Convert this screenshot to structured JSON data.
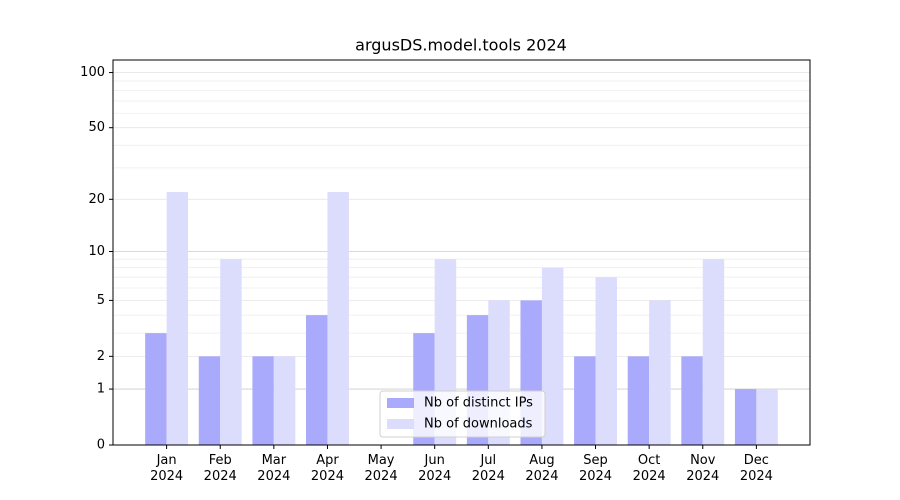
{
  "chart_data": {
    "type": "bar",
    "title": "argusDS.model.tools 2024",
    "categories": [
      "Jan\n2024",
      "Feb\n2024",
      "Mar\n2024",
      "Apr\n2024",
      "May\n2024",
      "Jun\n2024",
      "Jul\n2024",
      "Aug\n2024",
      "Sep\n2024",
      "Oct\n2024",
      "Nov\n2024",
      "Dec\n2024"
    ],
    "series": [
      {
        "name": "Nb of distinct IPs",
        "color": "#aaaafc",
        "values": [
          3,
          2,
          2,
          4,
          0,
          3,
          4,
          5,
          2,
          2,
          2,
          1
        ]
      },
      {
        "name": "Nb of downloads",
        "color": "#dcdcfc",
        "values": [
          22,
          9,
          2,
          22,
          0,
          9,
          5,
          8,
          7,
          5,
          9,
          1
        ]
      }
    ],
    "yscale": "log1p",
    "ylim": [
      0,
      117
    ],
    "yticks": [
      0,
      1,
      2,
      5,
      10,
      20,
      50,
      100
    ],
    "yminorticks": [
      3,
      4,
      6,
      7,
      8,
      9,
      30,
      40,
      60,
      70,
      80,
      90
    ],
    "grid": true,
    "legend": "lower center"
  }
}
